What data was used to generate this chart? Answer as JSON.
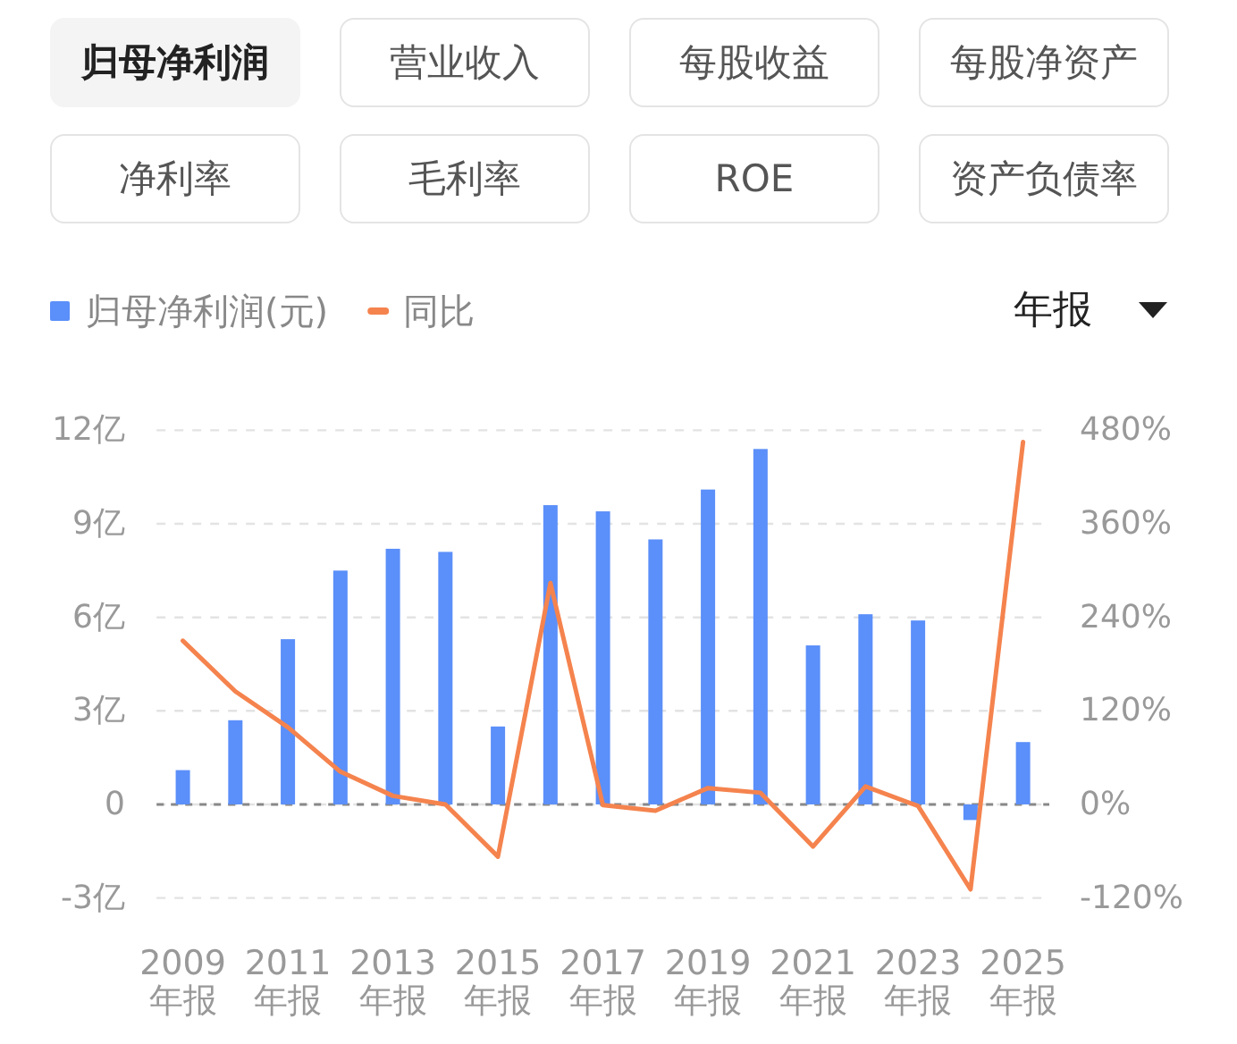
{
  "chart_data": {
    "type": "bar",
    "annotations": [
      "归母净利润",
      "营业收入",
      "每股收益",
      "每股净资产",
      "净利率",
      "毛利率",
      "ROE",
      "资产负债率",
      "年报"
    ],
    "categories": [
      "2009年报",
      null,
      "2011年报",
      null,
      "2013年报",
      null,
      "2015年报",
      null,
      "2017年报",
      null,
      "2019年报",
      null,
      "2021年报",
      null,
      "2023年报",
      null,
      "2025年报"
    ],
    "series": [
      {
        "name": "归母净利润(元)",
        "color": "#5b8ff9",
        "values": [
          1.1,
          2.7,
          5.3,
          7.5,
          8.2,
          8.1,
          2.5,
          9.6,
          9.4,
          8.5,
          10.1,
          11.4,
          5.1,
          6.1,
          5.9,
          -0.5,
          2.0
        ]
      },
      {
        "name": "同比",
        "type": "line",
        "axis": "y2",
        "color": "#f5834e",
        "line_style": "solid",
        "values": [
          210,
          145,
          99,
          42,
          11,
          0,
          -67,
          284,
          -1,
          -8,
          21,
          15,
          -54,
          23,
          -2,
          -109,
          465
        ]
      }
    ],
    "ylim": [
      -3,
      12
    ],
    "yticks": [
      {
        "value": -3,
        "label": "-3亿"
      },
      0,
      {
        "value": 3,
        "label": "3亿"
      },
      {
        "value": 6,
        "label": "6亿"
      },
      {
        "value": 9,
        "label": "9亿"
      },
      {
        "value": 12,
        "label": "12亿"
      }
    ],
    "y2lim": [
      -120,
      480
    ],
    "y2ticks": [
      {
        "value": -120,
        "label": "-120%"
      },
      {
        "value": 0,
        "label": "0%"
      },
      {
        "value": 120,
        "label": "120%"
      },
      {
        "value": 240,
        "label": "240%"
      },
      {
        "value": 360,
        "label": "360%"
      },
      {
        "value": 480,
        "label": "480%"
      }
    ],
    "ref_lines": [
      {
        "axis": "y",
        "value": 0,
        "color": "#888888",
        "line_style": "dashed"
      }
    ],
    "grid": "y",
    "legend": "top left"
  }
}
